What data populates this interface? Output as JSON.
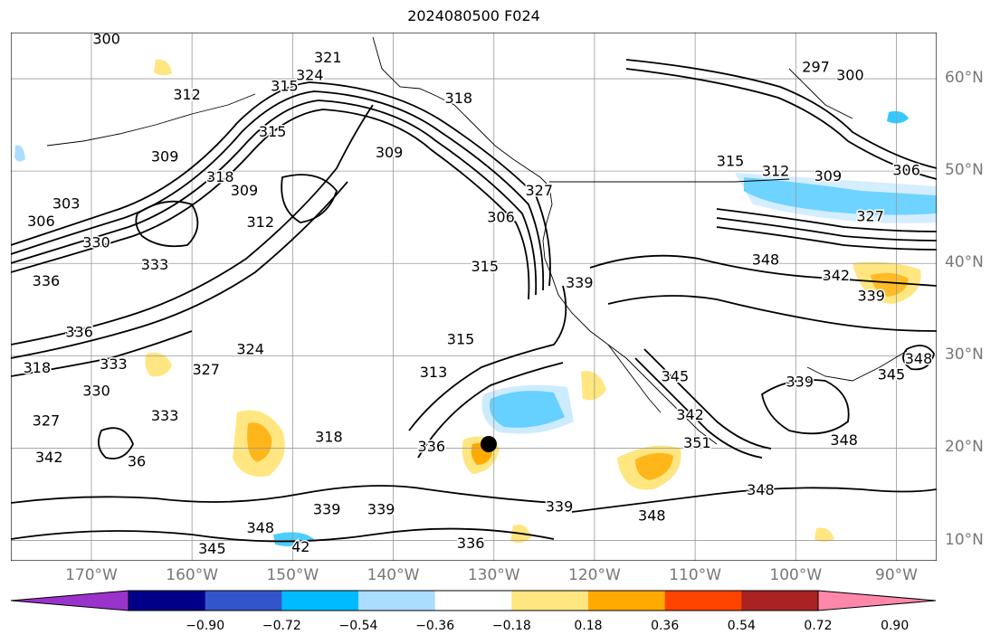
{
  "title": "2024080500 F024",
  "map": {
    "lon_range": [
      -178,
      -86
    ],
    "lat_range": [
      7.8,
      65
    ],
    "lat_labels": [
      {
        "lat": 60,
        "text": "60°N"
      },
      {
        "lat": 50,
        "text": "50°N"
      },
      {
        "lat": 40,
        "text": "40°N"
      },
      {
        "lat": 30,
        "text": "30°N"
      },
      {
        "lat": 20,
        "text": "20°N"
      },
      {
        "lat": 10,
        "text": "10°N"
      }
    ],
    "lon_labels": [
      {
        "lon": -170,
        "text": "170°W"
      },
      {
        "lon": -160,
        "text": "160°W"
      },
      {
        "lon": -150,
        "text": "150°W"
      },
      {
        "lon": -140,
        "text": "140°W"
      },
      {
        "lon": -130,
        "text": "130°W"
      },
      {
        "lon": -120,
        "text": "120°W"
      },
      {
        "lon": -110,
        "text": "110°W"
      },
      {
        "lon": -100,
        "text": "100°W"
      },
      {
        "lon": -90,
        "text": "90°W"
      }
    ],
    "contour_labels": [
      {
        "lon": -146.5,
        "lat": 62.2,
        "text": "321"
      },
      {
        "lon": -168.5,
        "lat": 64.2,
        "text": "300"
      },
      {
        "lon": -148.3,
        "lat": 60.3,
        "text": "324"
      },
      {
        "lon": -160.5,
        "lat": 58.2,
        "text": "312"
      },
      {
        "lon": -150.8,
        "lat": 59.1,
        "text": "315"
      },
      {
        "lon": -133.5,
        "lat": 57.8,
        "text": "318"
      },
      {
        "lon": -98.0,
        "lat": 61.2,
        "text": "297"
      },
      {
        "lon": -94.6,
        "lat": 60.3,
        "text": "300"
      },
      {
        "lon": -162.7,
        "lat": 51.5,
        "text": "309"
      },
      {
        "lon": -152.0,
        "lat": 54.2,
        "text": "315"
      },
      {
        "lon": -140.4,
        "lat": 51.9,
        "text": "309"
      },
      {
        "lon": -157.2,
        "lat": 49.3,
        "text": "318"
      },
      {
        "lon": -154.8,
        "lat": 47.8,
        "text": "309"
      },
      {
        "lon": -153.2,
        "lat": 44.4,
        "text": "312"
      },
      {
        "lon": -172.5,
        "lat": 46.4,
        "text": "303"
      },
      {
        "lon": -175.0,
        "lat": 44.5,
        "text": "306"
      },
      {
        "lon": -169.5,
        "lat": 42.2,
        "text": "330"
      },
      {
        "lon": -163.7,
        "lat": 39.8,
        "text": "333"
      },
      {
        "lon": -174.5,
        "lat": 38.0,
        "text": "336"
      },
      {
        "lon": -171.2,
        "lat": 32.5,
        "text": "336"
      },
      {
        "lon": -175.4,
        "lat": 28.6,
        "text": "318"
      },
      {
        "lon": -167.8,
        "lat": 29.0,
        "text": "333"
      },
      {
        "lon": -169.5,
        "lat": 26.1,
        "text": "330"
      },
      {
        "lon": -174.5,
        "lat": 22.9,
        "text": "327"
      },
      {
        "lon": -174.2,
        "lat": 18.9,
        "text": "342"
      },
      {
        "lon": -158.6,
        "lat": 28.4,
        "text": "327"
      },
      {
        "lon": -162.7,
        "lat": 23.4,
        "text": "333"
      },
      {
        "lon": -154.2,
        "lat": 30.6,
        "text": "324"
      },
      {
        "lon": -125.5,
        "lat": 47.8,
        "text": "327"
      },
      {
        "lon": -129.3,
        "lat": 44.9,
        "text": "306"
      },
      {
        "lon": -130.9,
        "lat": 39.6,
        "text": "315"
      },
      {
        "lon": -121.5,
        "lat": 37.8,
        "text": "339"
      },
      {
        "lon": -133.3,
        "lat": 31.7,
        "text": "315"
      },
      {
        "lon": -136.0,
        "lat": 28.1,
        "text": "313"
      },
      {
        "lon": -136.2,
        "lat": 20.1,
        "text": "336"
      },
      {
        "lon": -146.4,
        "lat": 21.1,
        "text": "318"
      },
      {
        "lon": -146.6,
        "lat": 13.3,
        "text": "339"
      },
      {
        "lon": -141.2,
        "lat": 13.3,
        "text": "339"
      },
      {
        "lon": -123.5,
        "lat": 13.6,
        "text": "339"
      },
      {
        "lon": -153.2,
        "lat": 11.3,
        "text": "348"
      },
      {
        "lon": -158.0,
        "lat": 9.0,
        "text": "345"
      },
      {
        "lon": -132.3,
        "lat": 9.6,
        "text": "336"
      },
      {
        "lon": -114.3,
        "lat": 12.6,
        "text": "348"
      },
      {
        "lon": -106.5,
        "lat": 51.0,
        "text": "315"
      },
      {
        "lon": -102.0,
        "lat": 49.9,
        "text": "312"
      },
      {
        "lon": -96.8,
        "lat": 49.4,
        "text": "309"
      },
      {
        "lon": -89.0,
        "lat": 50.0,
        "text": "306"
      },
      {
        "lon": -92.6,
        "lat": 45.0,
        "text": "327"
      },
      {
        "lon": -103.0,
        "lat": 40.3,
        "text": "348"
      },
      {
        "lon": -96.0,
        "lat": 38.6,
        "text": "342"
      },
      {
        "lon": -92.5,
        "lat": 36.4,
        "text": "339"
      },
      {
        "lon": -99.6,
        "lat": 27.1,
        "text": "339"
      },
      {
        "lon": -90.5,
        "lat": 27.9,
        "text": "345"
      },
      {
        "lon": -87.8,
        "lat": 29.6,
        "text": "348"
      },
      {
        "lon": -95.2,
        "lat": 20.8,
        "text": "348"
      },
      {
        "lon": -103.5,
        "lat": 15.4,
        "text": "348"
      },
      {
        "lon": -110.5,
        "lat": 23.5,
        "text": "342"
      },
      {
        "lon": -109.8,
        "lat": 20.5,
        "text": "351"
      },
      {
        "lon": -112.0,
        "lat": 27.7,
        "text": "345"
      },
      {
        "lon": -165.5,
        "lat": 18.5,
        "text": "36"
      },
      {
        "lon": -149.2,
        "lat": 9.2,
        "text": "42"
      }
    ]
  },
  "colorbar": {
    "colors": [
      "#9933cc",
      "#000088",
      "#3355cc",
      "#00bbff",
      "#aaddff",
      "#ffffff",
      "#ffe680",
      "#ffaa00",
      "#ff4400",
      "#aa2222",
      "#ff88aa"
    ],
    "tick_labels": [
      "−0.90",
      "−0.72",
      "−0.54",
      "−0.36",
      "−0.18",
      "0.18",
      "0.36",
      "0.54",
      "0.72",
      "0.90"
    ]
  }
}
